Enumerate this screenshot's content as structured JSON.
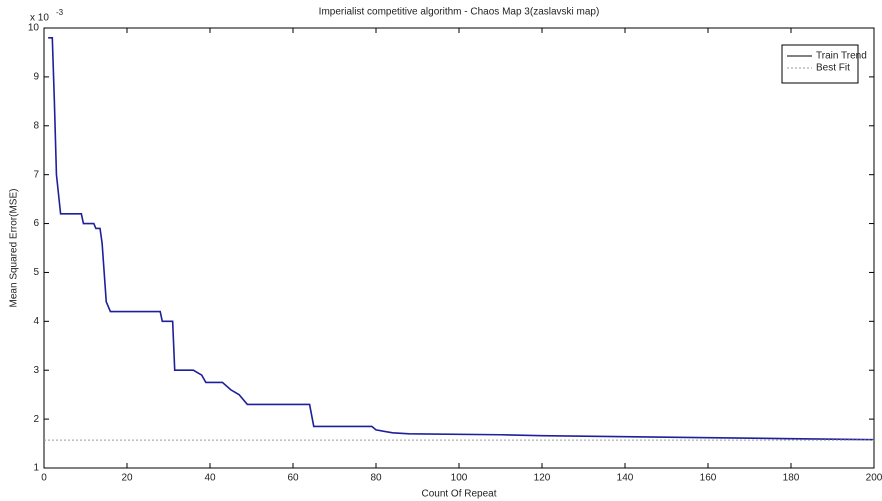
{
  "chart_data": {
    "type": "line",
    "title": "Imperialist competitive algorithm - Chaos Map 3(zaslavski map)",
    "x_label": "Count Of Repeat",
    "y_label": "Mean Squared Error(MSE)",
    "y_multiplier": {
      "base": "x 10",
      "exponent": "-3"
    },
    "xlim": [
      0,
      200
    ],
    "xticks": [
      0,
      20,
      40,
      60,
      80,
      100,
      120,
      140,
      160,
      180,
      200
    ],
    "ylim": [
      1,
      10
    ],
    "yticks": [
      1,
      2,
      3,
      4,
      5,
      6,
      7,
      8,
      9,
      10
    ],
    "grid": false,
    "legend": "upper-right",
    "series": [
      {
        "name": "Train Trend",
        "color": "#1f1f9a",
        "dash": "solid",
        "x": [
          1,
          2,
          2.5,
          3,
          4,
          9,
          9.5,
          12,
          12.5,
          13.5,
          14,
          14.5,
          15,
          16,
          28,
          28.5,
          31,
          31.5,
          36,
          37,
          38,
          39,
          43,
          45,
          47,
          49,
          64,
          65,
          79,
          80,
          84,
          88,
          110,
          120,
          140,
          160,
          180,
          200
        ],
        "values": [
          9.8,
          9.8,
          8.5,
          7,
          6.2,
          6.2,
          6.0,
          6.0,
          5.9,
          5.9,
          5.6,
          5.0,
          4.4,
          4.2,
          4.2,
          4.0,
          4.0,
          3.0,
          3.0,
          2.95,
          2.9,
          2.75,
          2.75,
          2.6,
          2.5,
          2.3,
          2.3,
          1.85,
          1.85,
          1.78,
          1.72,
          1.7,
          1.68,
          1.66,
          1.64,
          1.62,
          1.6,
          1.58
        ]
      },
      {
        "name": "Best Fit",
        "color": "#999999",
        "dash": "dotted",
        "x": [
          0,
          200
        ],
        "values": [
          1.57,
          1.57
        ]
      }
    ]
  }
}
